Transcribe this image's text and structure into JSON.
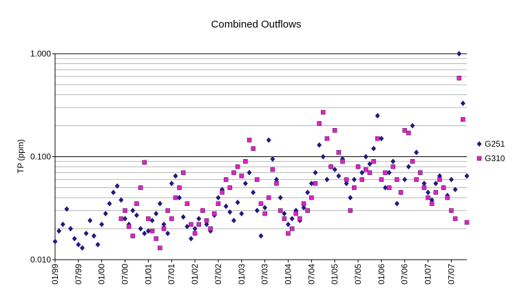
{
  "chart_data": {
    "type": "scatter",
    "title": "Combined Outflows",
    "xlabel": "",
    "ylabel": "TP (ppm)",
    "yscale": "log",
    "ylim": [
      0.01,
      1.0
    ],
    "y_ticks": [
      "0.010",
      "0.100",
      "1.000"
    ],
    "x_range": [
      "1999-01",
      "2007-11"
    ],
    "x_ticks": [
      "01/99",
      "07/99",
      "01/00",
      "07/00",
      "01/01",
      "07/01",
      "01/02",
      "07/02",
      "01/03",
      "07/03",
      "01/04",
      "07/04",
      "01/05",
      "07/05",
      "01/06",
      "07/06",
      "01/07",
      "07/07"
    ],
    "grid": "horizontal minor gridlines, solid black line at 0.100",
    "legend_position": "right",
    "series": [
      {
        "name": "G251",
        "marker": "diamond",
        "color": "#1f1a80",
        "points": [
          [
            "1999-01",
            0.015
          ],
          [
            "1999-02",
            0.019
          ],
          [
            "1999-03",
            0.022
          ],
          [
            "1999-04",
            0.031
          ],
          [
            "1999-05",
            0.02
          ],
          [
            "1999-06",
            0.016
          ],
          [
            "1999-07",
            0.014
          ],
          [
            "1999-08",
            0.013
          ],
          [
            "1999-09",
            0.018
          ],
          [
            "1999-10",
            0.024
          ],
          [
            "1999-11",
            0.017
          ],
          [
            "1999-12",
            0.014
          ],
          [
            "2000-01",
            0.022
          ],
          [
            "2000-02",
            0.028
          ],
          [
            "2000-03",
            0.035
          ],
          [
            "2000-04",
            0.045
          ],
          [
            "2000-05",
            0.052
          ],
          [
            "2000-06",
            0.038
          ],
          [
            "2000-07",
            0.025
          ],
          [
            "2000-08",
            0.022
          ],
          [
            "2000-09",
            0.03
          ],
          [
            "2000-10",
            0.027
          ],
          [
            "2000-11",
            0.02
          ],
          [
            "2000-12",
            0.018
          ],
          [
            "2001-01",
            0.019
          ],
          [
            "2001-02",
            0.024
          ],
          [
            "2001-03",
            0.028
          ],
          [
            "2001-04",
            0.035
          ],
          [
            "2001-05",
            0.022
          ],
          [
            "2001-06",
            0.018
          ],
          [
            "2001-07",
            0.055
          ],
          [
            "2001-08",
            0.065
          ],
          [
            "2001-09",
            0.04
          ],
          [
            "2001-10",
            0.026
          ],
          [
            "2001-11",
            0.021
          ],
          [
            "2001-12",
            0.016
          ],
          [
            "2002-01",
            0.02
          ],
          [
            "2002-02",
            0.025
          ],
          [
            "2002-03",
            0.03
          ],
          [
            "2002-04",
            0.022
          ],
          [
            "2002-05",
            0.019
          ],
          [
            "2002-06",
            0.027
          ],
          [
            "2002-07",
            0.04
          ],
          [
            "2002-08",
            0.048
          ],
          [
            "2002-09",
            0.033
          ],
          [
            "2002-10",
            0.029
          ],
          [
            "2002-11",
            0.024
          ],
          [
            "2002-12",
            0.036
          ],
          [
            "2003-01",
            0.028
          ],
          [
            "2003-02",
            0.055
          ],
          [
            "2003-03",
            0.07
          ],
          [
            "2003-04",
            0.045
          ],
          [
            "2003-05",
            0.03
          ],
          [
            "2003-06",
            0.017
          ],
          [
            "2003-07",
            0.032
          ],
          [
            "2003-08",
            0.145
          ],
          [
            "2003-09",
            0.095
          ],
          [
            "2003-10",
            0.06
          ],
          [
            "2003-11",
            0.04
          ],
          [
            "2003-12",
            0.028
          ],
          [
            "2004-01",
            0.022
          ],
          [
            "2004-02",
            0.025
          ],
          [
            "2004-03",
            0.03
          ],
          [
            "2004-04",
            0.024
          ],
          [
            "2004-05",
            0.032
          ],
          [
            "2004-06",
            0.045
          ],
          [
            "2004-07",
            0.055
          ],
          [
            "2004-08",
            0.07
          ],
          [
            "2004-09",
            0.13
          ],
          [
            "2004-10",
            0.1
          ],
          [
            "2004-11",
            0.06
          ],
          [
            "2004-12",
            0.08
          ],
          [
            "2005-01",
            0.075
          ],
          [
            "2005-02",
            0.065
          ],
          [
            "2005-03",
            0.095
          ],
          [
            "2005-04",
            0.055
          ],
          [
            "2005-05",
            0.04
          ],
          [
            "2005-06",
            0.06
          ],
          [
            "2005-07",
            0.08
          ],
          [
            "2005-08",
            0.07
          ],
          [
            "2005-09",
            0.1
          ],
          [
            "2005-10",
            0.085
          ],
          [
            "2005-11",
            0.12
          ],
          [
            "2005-12",
            0.25
          ],
          [
            "2006-01",
            0.15
          ],
          [
            "2006-02",
            0.05
          ],
          [
            "2006-03",
            0.07
          ],
          [
            "2006-04",
            0.09
          ],
          [
            "2006-05",
            0.035
          ],
          [
            "2006-06",
            0.045
          ],
          [
            "2006-07",
            0.06
          ],
          [
            "2006-08",
            0.08
          ],
          [
            "2006-09",
            0.2
          ],
          [
            "2006-10",
            0.11
          ],
          [
            "2006-11",
            0.07
          ],
          [
            "2006-12",
            0.055
          ],
          [
            "2007-01",
            0.045
          ],
          [
            "2007-02",
            0.038
          ],
          [
            "2007-03",
            0.055
          ],
          [
            "2007-04",
            0.065
          ],
          [
            "2007-05",
            0.05
          ],
          [
            "2007-06",
            0.042
          ],
          [
            "2007-07",
            0.06
          ],
          [
            "2007-08",
            0.048
          ],
          [
            "2007-09",
            1.0
          ],
          [
            "2007-10",
            0.33
          ],
          [
            "2007-11",
            0.065
          ]
        ]
      },
      {
        "name": "G310",
        "marker": "square",
        "color": "#e021c8",
        "points": [
          [
            "2000-06",
            0.025
          ],
          [
            "2000-07",
            0.03
          ],
          [
            "2000-08",
            0.021
          ],
          [
            "2000-09",
            0.017
          ],
          [
            "2000-10",
            0.035
          ],
          [
            "2000-11",
            0.05
          ],
          [
            "2000-12",
            0.088
          ],
          [
            "2001-01",
            0.025
          ],
          [
            "2001-02",
            0.019
          ],
          [
            "2001-03",
            0.016
          ],
          [
            "2001-04",
            0.013
          ],
          [
            "2001-05",
            0.02
          ],
          [
            "2001-06",
            0.03
          ],
          [
            "2001-07",
            0.025
          ],
          [
            "2001-08",
            0.04
          ],
          [
            "2001-09",
            0.05
          ],
          [
            "2001-10",
            0.07
          ],
          [
            "2001-11",
            0.035
          ],
          [
            "2001-12",
            0.022
          ],
          [
            "2002-01",
            0.018
          ],
          [
            "2002-02",
            0.022
          ],
          [
            "2002-03",
            0.03
          ],
          [
            "2002-04",
            0.024
          ],
          [
            "2002-05",
            0.02
          ],
          [
            "2002-06",
            0.028
          ],
          [
            "2002-07",
            0.035
          ],
          [
            "2002-08",
            0.045
          ],
          [
            "2002-09",
            0.06
          ],
          [
            "2002-10",
            0.05
          ],
          [
            "2002-11",
            0.07
          ],
          [
            "2002-12",
            0.08
          ],
          [
            "2003-01",
            0.065
          ],
          [
            "2003-02",
            0.09
          ],
          [
            "2003-03",
            0.145
          ],
          [
            "2003-04",
            0.12
          ],
          [
            "2003-05",
            0.06
          ],
          [
            "2003-06",
            0.035
          ],
          [
            "2003-07",
            0.028
          ],
          [
            "2003-08",
            0.04
          ],
          [
            "2003-09",
            0.075
          ],
          [
            "2003-10",
            0.055
          ],
          [
            "2003-11",
            0.03
          ],
          [
            "2003-12",
            0.025
          ],
          [
            "2004-01",
            0.018
          ],
          [
            "2004-02",
            0.02
          ],
          [
            "2004-03",
            0.028
          ],
          [
            "2004-04",
            0.025
          ],
          [
            "2004-05",
            0.035
          ],
          [
            "2004-06",
            0.03
          ],
          [
            "2004-07",
            0.04
          ],
          [
            "2004-08",
            0.055
          ],
          [
            "2004-09",
            0.21
          ],
          [
            "2004-10",
            0.27
          ],
          [
            "2004-11",
            0.15
          ],
          [
            "2004-12",
            0.08
          ],
          [
            "2005-01",
            0.18
          ],
          [
            "2005-02",
            0.11
          ],
          [
            "2005-03",
            0.09
          ],
          [
            "2005-04",
            0.06
          ],
          [
            "2005-05",
            0.03
          ],
          [
            "2005-06",
            0.05
          ],
          [
            "2005-07",
            0.08
          ],
          [
            "2005-08",
            0.06
          ],
          [
            "2005-09",
            0.075
          ],
          [
            "2005-10",
            0.07
          ],
          [
            "2005-11",
            0.09
          ],
          [
            "2005-12",
            0.15
          ],
          [
            "2006-01",
            0.06
          ],
          [
            "2006-02",
            0.07
          ],
          [
            "2006-03",
            0.05
          ],
          [
            "2006-04",
            0.08
          ],
          [
            "2006-05",
            0.06
          ],
          [
            "2006-06",
            0.045
          ],
          [
            "2006-07",
            0.18
          ],
          [
            "2006-08",
            0.17
          ],
          [
            "2006-09",
            0.09
          ],
          [
            "2006-10",
            0.06
          ],
          [
            "2006-11",
            0.07
          ],
          [
            "2006-12",
            0.05
          ],
          [
            "2007-01",
            0.04
          ],
          [
            "2007-02",
            0.035
          ],
          [
            "2007-03",
            0.045
          ],
          [
            "2007-04",
            0.06
          ],
          [
            "2007-05",
            0.05
          ],
          [
            "2007-06",
            0.04
          ],
          [
            "2007-07",
            0.03
          ],
          [
            "2007-08",
            0.025
          ],
          [
            "2007-09",
            0.58
          ],
          [
            "2007-10",
            0.23
          ],
          [
            "2007-11",
            0.023
          ]
        ]
      }
    ]
  }
}
